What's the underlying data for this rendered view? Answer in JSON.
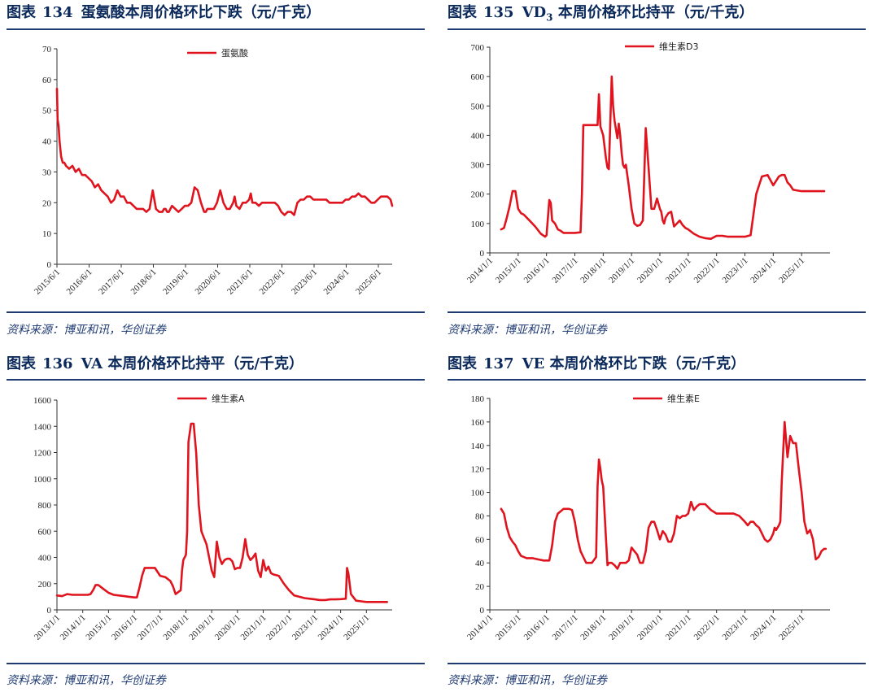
{
  "panels": [
    {
      "prefix": "图表",
      "number": "134",
      "title": "蛋氨酸本周价格环比下跌（元/千克）",
      "source": "资料来源：博亚和讯，华创证券"
    },
    {
      "prefix": "图表",
      "number": "135",
      "title_pre": "VD",
      "title_sub": "3",
      "title_post": " 本周价格环比持平（元/千克）",
      "source": "资料来源：博亚和讯，华创证券"
    },
    {
      "prefix": "图表",
      "number": "136",
      "title": "VA 本周价格环比持平（元/千克）",
      "source": "资料来源：博亚和讯，华创证券"
    },
    {
      "prefix": "图表",
      "number": "137",
      "title": "VE 本周价格环比下跌（元/千克）",
      "source": "资料来源：博亚和讯，华创证券"
    }
  ],
  "colors": {
    "series": "#e0141e",
    "title": "#0b2a5b",
    "rule": "#1f3b73"
  },
  "chart_data": [
    {
      "type": "line",
      "title": "蛋氨酸本周价格环比下跌（元/千克）",
      "legend": "蛋氨酸",
      "ylim": [
        0,
        70
      ],
      "yticks": [
        0,
        10,
        20,
        30,
        40,
        50,
        60,
        70
      ],
      "xlim": [
        2015.42,
        2025.85
      ],
      "xticks": [
        {
          "v": 2015.42,
          "label": "2015/6/1"
        },
        {
          "v": 2016.42,
          "label": "2016/6/1"
        },
        {
          "v": 2017.42,
          "label": "2017/6/1"
        },
        {
          "v": 2018.42,
          "label": "2018/6/1"
        },
        {
          "v": 2019.42,
          "label": "2019/6/1"
        },
        {
          "v": 2020.42,
          "label": "2020/6/1"
        },
        {
          "v": 2021.42,
          "label": "2021/6/1"
        },
        {
          "v": 2022.42,
          "label": "2022/6/1"
        },
        {
          "v": 2023.42,
          "label": "2023/6/1"
        },
        {
          "v": 2024.42,
          "label": "2024/6/1"
        },
        {
          "v": 2025.42,
          "label": "2025/6/1"
        }
      ],
      "x": [
        2015.42,
        2015.44,
        2015.47,
        2015.5,
        2015.55,
        2015.6,
        2015.65,
        2015.7,
        2015.8,
        2015.9,
        2016.0,
        2016.1,
        2016.2,
        2016.3,
        2016.4,
        2016.5,
        2016.6,
        2016.7,
        2016.8,
        2016.9,
        2017.0,
        2017.1,
        2017.2,
        2017.3,
        2017.4,
        2017.5,
        2017.6,
        2017.7,
        2017.8,
        2017.9,
        2018.0,
        2018.1,
        2018.2,
        2018.3,
        2018.4,
        2018.5,
        2018.6,
        2018.7,
        2018.75,
        2018.8,
        2018.85,
        2018.9,
        2019.0,
        2019.1,
        2019.2,
        2019.3,
        2019.4,
        2019.5,
        2019.6,
        2019.7,
        2019.8,
        2019.9,
        2020.0,
        2020.05,
        2020.1,
        2020.2,
        2020.3,
        2020.4,
        2020.5,
        2020.6,
        2020.7,
        2020.8,
        2020.9,
        2020.95,
        2021.0,
        2021.1,
        2021.2,
        2021.3,
        2021.4,
        2021.45,
        2021.5,
        2021.6,
        2021.7,
        2021.8,
        2021.9,
        2022.0,
        2022.1,
        2022.2,
        2022.3,
        2022.4,
        2022.5,
        2022.6,
        2022.7,
        2022.8,
        2022.9,
        2023.0,
        2023.1,
        2023.2,
        2023.3,
        2023.4,
        2023.5,
        2023.6,
        2023.7,
        2023.8,
        2023.9,
        2024.0,
        2024.1,
        2024.2,
        2024.3,
        2024.4,
        2024.5,
        2024.6,
        2024.7,
        2024.8,
        2024.9,
        2025.0,
        2025.1,
        2025.2,
        2025.3,
        2025.4,
        2025.5,
        2025.6,
        2025.7,
        2025.8,
        2025.85
      ],
      "values": [
        57,
        47,
        45,
        40,
        35,
        33,
        33,
        32,
        31,
        32,
        30,
        31,
        29,
        29,
        28,
        27,
        25,
        26,
        24,
        23,
        22,
        20,
        21,
        24,
        22,
        22,
        20,
        20,
        19,
        18,
        18,
        18,
        17,
        18,
        24,
        18,
        17,
        17,
        18,
        18,
        17,
        17,
        19,
        18,
        17,
        18,
        19,
        19,
        20,
        25,
        24,
        20,
        17,
        17,
        18,
        18,
        18,
        20,
        24,
        20,
        18,
        18,
        20,
        22,
        19,
        18,
        20,
        20,
        21,
        23,
        20,
        20,
        19,
        20,
        20,
        20,
        20,
        20,
        19,
        17,
        16,
        17,
        17,
        16,
        20,
        21,
        21,
        22,
        22,
        21,
        21,
        21,
        21,
        21,
        20,
        20,
        20,
        20,
        20,
        21,
        21,
        22,
        22,
        23,
        22,
        22,
        21,
        20,
        20,
        21,
        22,
        22,
        22,
        21,
        19
      ]
    },
    {
      "type": "line",
      "title": "VD3 本周价格环比持平（元/千克）",
      "legend": "维生素D3",
      "ylim": [
        0,
        700
      ],
      "yticks": [
        0,
        100,
        200,
        300,
        400,
        500,
        600,
        700
      ],
      "xlim": [
        2014.0,
        2026.0
      ],
      "xticks": [
        {
          "v": 2014.0,
          "label": "2014/1/1"
        },
        {
          "v": 2015.0,
          "label": "2015/1/1"
        },
        {
          "v": 2016.0,
          "label": "2016/1/1"
        },
        {
          "v": 2017.0,
          "label": "2017/1/1"
        },
        {
          "v": 2018.0,
          "label": "2018/1/1"
        },
        {
          "v": 2019.0,
          "label": "2019/1/1"
        },
        {
          "v": 2020.0,
          "label": "2020/1/1"
        },
        {
          "v": 2021.0,
          "label": "2021/1/1"
        },
        {
          "v": 2022.0,
          "label": "2022/1/1"
        },
        {
          "v": 2023.0,
          "label": "2023/1/1"
        },
        {
          "v": 2024.0,
          "label": "2024/1/1"
        },
        {
          "v": 2025.0,
          "label": "2025/1/1"
        }
      ],
      "x": [
        2014.4,
        2014.5,
        2014.6,
        2014.7,
        2014.8,
        2014.9,
        2015.0,
        2015.1,
        2015.2,
        2015.4,
        2015.6,
        2015.8,
        2015.95,
        2016.0,
        2016.05,
        2016.1,
        2016.15,
        2016.2,
        2016.3,
        2016.4,
        2016.5,
        2016.6,
        2016.8,
        2017.0,
        2017.2,
        2017.25,
        2017.3,
        2017.5,
        2017.7,
        2017.8,
        2017.85,
        2017.9,
        2018.0,
        2018.1,
        2018.15,
        2018.2,
        2018.3,
        2018.35,
        2018.4,
        2018.45,
        2018.5,
        2018.55,
        2018.6,
        2018.65,
        2018.7,
        2018.75,
        2018.8,
        2018.9,
        2019.0,
        2019.1,
        2019.2,
        2019.3,
        2019.4,
        2019.5,
        2019.6,
        2019.7,
        2019.8,
        2019.9,
        2020.0,
        2020.05,
        2020.1,
        2020.15,
        2020.2,
        2020.3,
        2020.4,
        2020.5,
        2020.6,
        2020.7,
        2020.8,
        2020.9,
        2021.0,
        2021.2,
        2021.4,
        2021.6,
        2021.8,
        2022.0,
        2022.2,
        2022.4,
        2022.6,
        2022.8,
        2023.0,
        2023.2,
        2023.4,
        2023.6,
        2023.8,
        2024.0,
        2024.2,
        2024.3,
        2024.4,
        2024.5,
        2024.6,
        2024.7,
        2024.8,
        2025.0,
        2025.2,
        2025.4,
        2025.6,
        2025.8
      ],
      "values": [
        80,
        85,
        120,
        160,
        210,
        210,
        150,
        135,
        130,
        110,
        90,
        65,
        55,
        60,
        120,
        180,
        170,
        110,
        100,
        80,
        75,
        68,
        68,
        68,
        70,
        200,
        435,
        435,
        435,
        435,
        540,
        430,
        400,
        320,
        290,
        285,
        600,
        500,
        450,
        420,
        390,
        440,
        400,
        340,
        300,
        290,
        300,
        230,
        150,
        100,
        92,
        95,
        110,
        425,
        290,
        150,
        150,
        185,
        150,
        140,
        110,
        100,
        120,
        135,
        140,
        90,
        100,
        110,
        95,
        85,
        80,
        65,
        55,
        50,
        48,
        58,
        58,
        55,
        55,
        55,
        55,
        60,
        200,
        260,
        265,
        230,
        260,
        265,
        265,
        240,
        230,
        215,
        213,
        210,
        210,
        210,
        210,
        210
      ]
    },
    {
      "type": "line",
      "title": "VA 本周价格环比持平（元/千克）",
      "legend": "维生素A",
      "ylim": [
        0,
        1600
      ],
      "yticks": [
        0,
        200,
        400,
        600,
        800,
        1000,
        1200,
        1400,
        1600
      ],
      "xlim": [
        2013.0,
        2026.0
      ],
      "xticks": [
        {
          "v": 2013.0,
          "label": "2013/1/1"
        },
        {
          "v": 2014.0,
          "label": "2014/1/1"
        },
        {
          "v": 2015.0,
          "label": "2015/1/1"
        },
        {
          "v": 2016.0,
          "label": "2016/1/1"
        },
        {
          "v": 2017.0,
          "label": "2017/1/1"
        },
        {
          "v": 2018.0,
          "label": "2018/1/1"
        },
        {
          "v": 2019.0,
          "label": "2019/1/1"
        },
        {
          "v": 2020.0,
          "label": "2020/1/1"
        },
        {
          "v": 2021.0,
          "label": "2021/1/1"
        },
        {
          "v": 2022.0,
          "label": "2022/1/1"
        },
        {
          "v": 2023.0,
          "label": "2023/1/1"
        },
        {
          "v": 2024.0,
          "label": "2024/1/1"
        },
        {
          "v": 2025.0,
          "label": "2025/1/1"
        }
      ],
      "x": [
        2013.0,
        2013.2,
        2013.4,
        2013.6,
        2013.8,
        2014.0,
        2014.2,
        2014.3,
        2014.4,
        2014.5,
        2014.6,
        2014.8,
        2015.0,
        2015.2,
        2015.4,
        2015.6,
        2015.8,
        2016.0,
        2016.1,
        2016.2,
        2016.3,
        2016.4,
        2016.5,
        2016.6,
        2016.8,
        2017.0,
        2017.2,
        2017.4,
        2017.5,
        2017.6,
        2017.8,
        2017.85,
        2017.9,
        2018.0,
        2018.05,
        2018.1,
        2018.2,
        2018.3,
        2018.4,
        2018.5,
        2018.6,
        2018.7,
        2018.8,
        2018.9,
        2019.0,
        2019.1,
        2019.2,
        2019.3,
        2019.4,
        2019.5,
        2019.6,
        2019.7,
        2019.8,
        2019.9,
        2020.0,
        2020.1,
        2020.2,
        2020.3,
        2020.4,
        2020.5,
        2020.6,
        2020.7,
        2020.8,
        2020.9,
        2021.0,
        2021.1,
        2021.2,
        2021.3,
        2021.4,
        2021.6,
        2021.8,
        2022.0,
        2022.2,
        2022.4,
        2022.6,
        2022.8,
        2023.0,
        2023.2,
        2023.4,
        2023.6,
        2023.8,
        2024.0,
        2024.2,
        2024.25,
        2024.3,
        2024.4,
        2024.6,
        2024.8,
        2025.0,
        2025.2,
        2025.4,
        2025.6,
        2025.8
      ],
      "values": [
        110,
        105,
        120,
        115,
        115,
        115,
        115,
        120,
        150,
        190,
        190,
        160,
        130,
        115,
        110,
        105,
        100,
        95,
        95,
        170,
        260,
        320,
        320,
        320,
        320,
        260,
        250,
        220,
        180,
        120,
        150,
        300,
        380,
        420,
        600,
        1280,
        1420,
        1420,
        1200,
        800,
        600,
        550,
        500,
        400,
        300,
        250,
        520,
        400,
        350,
        380,
        390,
        390,
        370,
        310,
        320,
        320,
        400,
        540,
        420,
        380,
        400,
        430,
        300,
        250,
        380,
        300,
        330,
        280,
        270,
        260,
        200,
        150,
        110,
        100,
        90,
        85,
        80,
        75,
        75,
        80,
        80,
        82,
        85,
        320,
        280,
        120,
        70,
        65,
        60,
        60,
        60,
        60,
        60
      ]
    },
    {
      "type": "line",
      "title": "VE 本周价格环比下跌（元/千克）",
      "legend": "维生素E",
      "ylim": [
        0,
        180
      ],
      "yticks": [
        0,
        20,
        40,
        60,
        80,
        100,
        120,
        140,
        160,
        180
      ],
      "xlim": [
        2014.0,
        2026.0
      ],
      "xticks": [
        {
          "v": 2014.0,
          "label": "2014/1/1"
        },
        {
          "v": 2015.0,
          "label": "2015/1/1"
        },
        {
          "v": 2016.0,
          "label": "2016/1/1"
        },
        {
          "v": 2017.0,
          "label": "2017/1/1"
        },
        {
          "v": 2018.0,
          "label": "2018/1/1"
        },
        {
          "v": 2019.0,
          "label": "2019/1/1"
        },
        {
          "v": 2020.0,
          "label": "2020/1/1"
        },
        {
          "v": 2021.0,
          "label": "2021/1/1"
        },
        {
          "v": 2022.0,
          "label": "2022/1/1"
        },
        {
          "v": 2023.0,
          "label": "2023/1/1"
        },
        {
          "v": 2024.0,
          "label": "2024/1/1"
        },
        {
          "v": 2025.0,
          "label": "2025/1/1"
        }
      ],
      "x": [
        2014.4,
        2014.5,
        2014.6,
        2014.7,
        2014.8,
        2014.9,
        2015.0,
        2015.1,
        2015.3,
        2015.5,
        2015.7,
        2015.9,
        2016.0,
        2016.1,
        2016.2,
        2016.3,
        2016.4,
        2016.5,
        2016.6,
        2016.8,
        2016.9,
        2017.0,
        2017.1,
        2017.2,
        2017.3,
        2017.4,
        2017.5,
        2017.6,
        2017.75,
        2017.8,
        2017.85,
        2017.9,
        2017.95,
        2018.0,
        2018.1,
        2018.15,
        2018.2,
        2018.3,
        2018.4,
        2018.5,
        2018.6,
        2018.7,
        2018.8,
        2018.9,
        2019.0,
        2019.1,
        2019.2,
        2019.3,
        2019.4,
        2019.5,
        2019.6,
        2019.7,
        2019.8,
        2019.9,
        2020.0,
        2020.1,
        2020.2,
        2020.3,
        2020.4,
        2020.5,
        2020.6,
        2020.7,
        2020.8,
        2020.9,
        2021.0,
        2021.1,
        2021.2,
        2021.3,
        2021.4,
        2021.5,
        2021.6,
        2021.8,
        2022.0,
        2022.2,
        2022.4,
        2022.6,
        2022.8,
        2023.0,
        2023.1,
        2023.2,
        2023.3,
        2023.4,
        2023.5,
        2023.6,
        2023.7,
        2023.8,
        2023.9,
        2024.0,
        2024.05,
        2024.1,
        2024.2,
        2024.25,
        2024.3,
        2024.4,
        2024.5,
        2024.6,
        2024.7,
        2024.8,
        2024.9,
        2025.0,
        2025.1,
        2025.2,
        2025.3,
        2025.4,
        2025.5,
        2025.6,
        2025.7,
        2025.8,
        2025.85
      ],
      "values": [
        86,
        82,
        70,
        62,
        58,
        55,
        50,
        46,
        44,
        44,
        43,
        42,
        42,
        42,
        55,
        75,
        82,
        84,
        86,
        86,
        85,
        75,
        60,
        50,
        45,
        40,
        40,
        40,
        45,
        105,
        128,
        120,
        110,
        105,
        60,
        38,
        40,
        40,
        38,
        35,
        40,
        40,
        40,
        42,
        53,
        50,
        47,
        40,
        40,
        50,
        70,
        75,
        75,
        68,
        60,
        67,
        64,
        58,
        58,
        65,
        80,
        78,
        80,
        80,
        82,
        92,
        85,
        88,
        90,
        90,
        90,
        85,
        82,
        82,
        82,
        82,
        80,
        75,
        72,
        75,
        75,
        72,
        70,
        65,
        60,
        58,
        60,
        65,
        70,
        68,
        72,
        75,
        110,
        160,
        130,
        148,
        142,
        142,
        120,
        100,
        75,
        65,
        68,
        60,
        43,
        45,
        50,
        52,
        52
      ]
    }
  ]
}
